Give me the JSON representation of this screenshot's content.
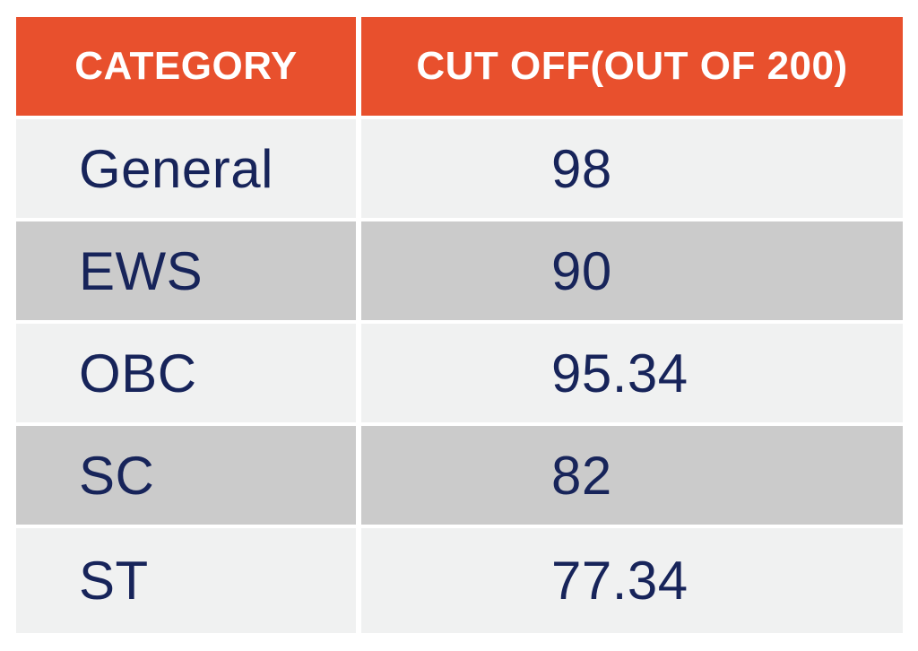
{
  "colors": {
    "page_bg": "#FFFFFF",
    "header_bg": "#E8502D",
    "header_text": "#FFFFFF",
    "row_light": "#F0F1F1",
    "row_dark": "#CBCBCB",
    "cell_text": "#17245A"
  },
  "chart_data": {
    "type": "table",
    "columns": [
      "CATEGORY",
      "CUT OFF(OUT OF 200)"
    ],
    "rows": [
      {
        "category": "General",
        "cutoff": "98"
      },
      {
        "category": "EWS",
        "cutoff": "90"
      },
      {
        "category": "OBC",
        "cutoff": "95.34"
      },
      {
        "category": "SC",
        "cutoff": "82"
      },
      {
        "category": "ST",
        "cutoff": "77.34"
      }
    ],
    "layout": {
      "legend": false,
      "grid_gap_color": "#FFFFFF",
      "alternating_rows": true
    }
  }
}
